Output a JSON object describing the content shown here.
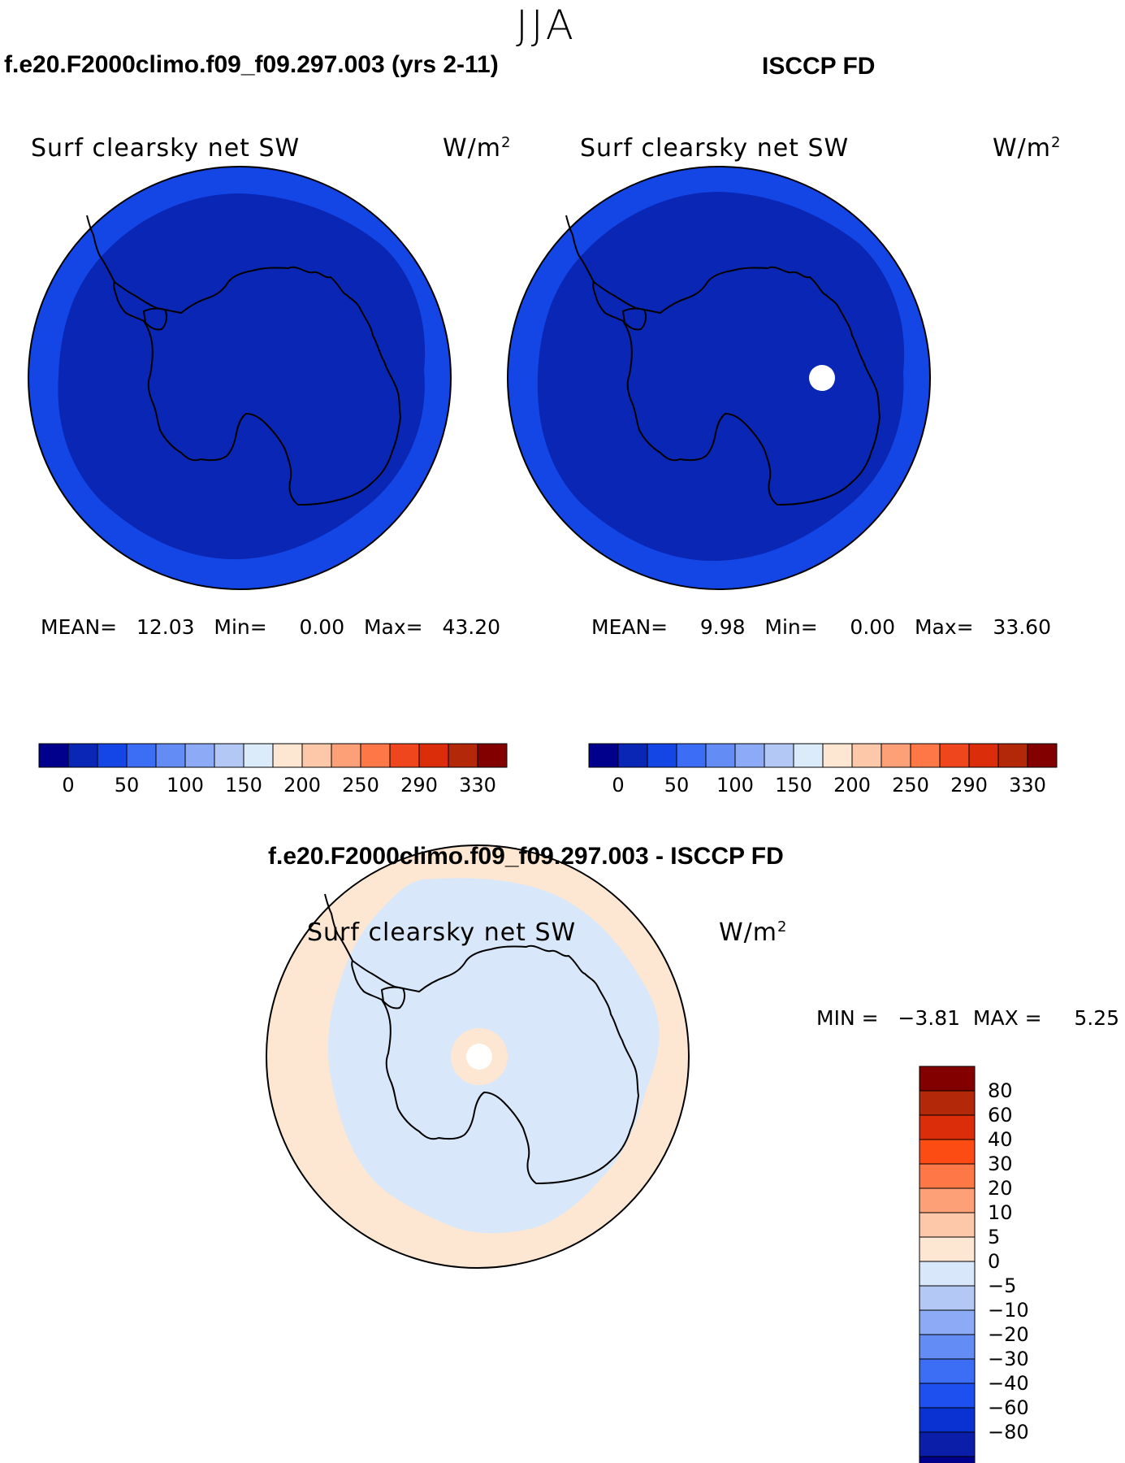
{
  "figure": {
    "season": "JJA"
  },
  "panels": [
    {
      "title": "f.e20.F2000climo.f09_f09.297.003 (yrs 2-11)",
      "variable": "Surf clearsky net SW",
      "units_base": "W/m",
      "units_exp": "2",
      "stats": {
        "mean_label": "MEAN=",
        "mean": "12.03",
        "min_label": "Min=",
        "min": "0.00",
        "max_label": "Max=",
        "max": "43.20"
      }
    },
    {
      "title": "ISCCP FD",
      "variable": "Surf clearsky net SW",
      "units_base": "W/m",
      "units_exp": "2",
      "stats": {
        "mean_label": "MEAN=",
        "mean": "9.98",
        "min_label": "Min=",
        "min": "0.00",
        "max_label": "Max=",
        "max": "33.60"
      }
    },
    {
      "title": "f.e20.F2000climo.f09_f09.297.003 - ISCCP FD",
      "variable": "Surf clearsky net SW",
      "units_base": "W/m",
      "units_exp": "2",
      "stats": {
        "min_label": "MIN =",
        "min": "−3.81",
        "max_label": "MAX =",
        "max": "5.25"
      }
    }
  ],
  "colorbar_abs": {
    "colors": [
      "#00008c",
      "#0a26b4",
      "#1446e6",
      "#3c6ef5",
      "#648cf5",
      "#8caaf5",
      "#b4c8f5",
      "#dcebfa",
      "#fde6d2",
      "#fdc8aa",
      "#fda078",
      "#fd7846",
      "#f0461e",
      "#dc2d0a",
      "#b4280a",
      "#820000"
    ],
    "tick_labels": [
      "0",
      "50",
      "100",
      "150",
      "200",
      "250",
      "290",
      "330"
    ]
  },
  "colorbar_diff": {
    "colors_top_to_bottom": [
      "#820000",
      "#b4280a",
      "#dc2d0a",
      "#fd4b14",
      "#fd7846",
      "#fda078",
      "#fdc8aa",
      "#fde6d2",
      "#d8e8fa",
      "#b4c8f5",
      "#8caaf5",
      "#648cf5",
      "#3c6ef5",
      "#1e50f0",
      "#0a32d2",
      "#0a1eaa",
      "#00008c"
    ],
    "tick_labels": [
      "80",
      "60",
      "40",
      "30",
      "20",
      "10",
      "5",
      "0",
      "−5",
      "−10",
      "−20",
      "−30",
      "−40",
      "−60",
      "−80"
    ]
  },
  "map_colors": {
    "abs_outer_ring": "#1446e6",
    "abs_inner": "#0a26b4",
    "diff_positive": "#fde6d2",
    "diff_negative": "#d8e8fa",
    "coast": "#000000"
  }
}
